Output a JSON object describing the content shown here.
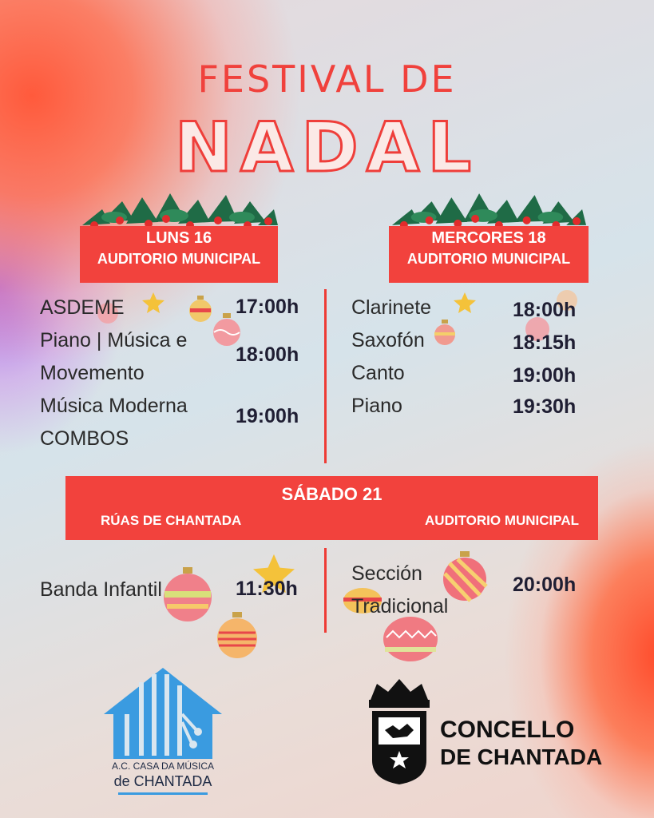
{
  "title": {
    "line1": "FESTIVAL DE",
    "line2": "NADAL"
  },
  "day1": {
    "date": "LUNS 16",
    "venue": "AUDITORIO MUNICIPAL",
    "items": [
      "ASDEME",
      "Piano | Música e",
      "Movemento",
      "Música Moderna",
      "COMBOS"
    ],
    "times": [
      "17:00h",
      "18:00h",
      "19:00h"
    ]
  },
  "day2": {
    "date": "MERCORES 18",
    "venue": "AUDITORIO MUNICIPAL",
    "items": [
      "Clarinete",
      "Saxofón",
      "Canto",
      "Piano"
    ],
    "times": [
      "18:00h",
      "18:15h",
      "19:00h",
      "19:30h"
    ]
  },
  "day3": {
    "date": "SÁBADO 21",
    "venue_left": "RÚAS DE CHANTADA",
    "venue_right": "AUDITORIO MUNICIPAL",
    "left_item": "Banda Infantil",
    "left_time": "11:30h",
    "right_item": [
      "Sección",
      "Tradicional"
    ],
    "right_time": "20:00h"
  },
  "logos": {
    "casa_line1": "A.C. CASA DA MÚSICA",
    "casa_line2": "de CHANTADA",
    "concello_line1": "CONCELLO",
    "concello_line2": "DE CHANTADA"
  },
  "colors": {
    "accent": "#f2423d",
    "text": "#2a2a2a",
    "time": "#1f1e33",
    "logo_blue": "#3a9be0"
  }
}
